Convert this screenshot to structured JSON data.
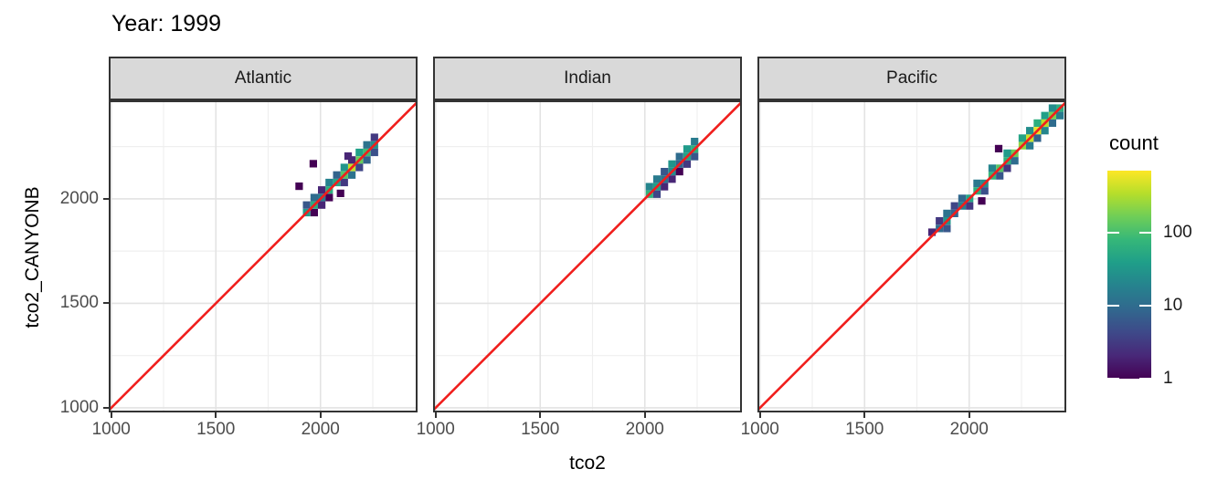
{
  "title": "Year: 1999",
  "axes": {
    "x_title": "tco2",
    "y_title": "tco2_CANYONB",
    "x_ticks": [
      1000,
      1500,
      2000
    ],
    "y_ticks": [
      1000,
      1500,
      2000
    ],
    "x_minor": [
      1250,
      1750,
      2250
    ],
    "y_minor": [
      1250,
      1750,
      2250
    ]
  },
  "legend": {
    "title": "count",
    "ticks": [
      1,
      10,
      100
    ],
    "scale": "log10",
    "max": 700
  },
  "colors": {
    "red_line": "#f01e1c",
    "strip_fill": "#d9d9d9",
    "border": "#333333",
    "grid_major": "#e3e3e3",
    "grid_minor": "#efefef",
    "axis_text": "#4d4d4d",
    "viridis": [
      "#440154",
      "#482878",
      "#3e4989",
      "#31688e",
      "#26828e",
      "#1f9e89",
      "#35b779",
      "#6ece58",
      "#b5de2b",
      "#fde725"
    ]
  },
  "chart_data": {
    "type": "heatmap",
    "geom": "bin2d",
    "title": "Year: 1999",
    "xlabel": "tco2",
    "ylabel": "tco2_CANYONB",
    "binwidth": 36,
    "x_domain": [
      988,
      2464
    ],
    "y_domain": [
      978,
      2471
    ],
    "legend_position": "right",
    "grid": true,
    "reference_line": {
      "type": "abline",
      "slope": 1,
      "intercept": 0
    },
    "facets": [
      {
        "label": "Atlantic",
        "bins": [
          [
            1934,
            1934,
            35
          ],
          [
            1970,
            1970,
            55
          ],
          [
            2006,
            2006,
            15
          ],
          [
            2042,
            2042,
            60
          ],
          [
            2078,
            2078,
            45
          ],
          [
            2114,
            2114,
            120
          ],
          [
            2150,
            2150,
            380
          ],
          [
            2186,
            2186,
            150
          ],
          [
            2222,
            2222,
            90
          ],
          [
            2258,
            2258,
            25
          ],
          [
            1934,
            1970,
            6
          ],
          [
            1970,
            2006,
            10
          ],
          [
            2006,
            1970,
            2
          ],
          [
            2042,
            2078,
            18
          ],
          [
            2078,
            2114,
            8
          ],
          [
            2114,
            2078,
            3
          ],
          [
            2114,
            2150,
            30
          ],
          [
            2150,
            2114,
            12
          ],
          [
            2186,
            2222,
            40
          ],
          [
            2222,
            2186,
            8
          ],
          [
            2186,
            2150,
            4
          ],
          [
            2222,
            2258,
            12
          ],
          [
            2258,
            2222,
            5
          ],
          [
            1970,
            1934,
            1
          ],
          [
            2006,
            2042,
            2
          ],
          [
            2042,
            2006,
            1
          ],
          [
            2150,
            2186,
            2
          ],
          [
            2258,
            2294,
            3
          ],
          [
            1898,
            2060,
            1
          ],
          [
            1966,
            2168,
            1
          ],
          [
            2096,
            2026,
            1
          ],
          [
            2132,
            2204,
            2
          ]
        ]
      },
      {
        "label": "Indian",
        "bins": [
          [
            2022,
            2022,
            70
          ],
          [
            2058,
            2058,
            40
          ],
          [
            2094,
            2094,
            12
          ],
          [
            2130,
            2130,
            25
          ],
          [
            2166,
            2166,
            8
          ],
          [
            2202,
            2202,
            45
          ],
          [
            2238,
            2238,
            60
          ],
          [
            2022,
            2058,
            20
          ],
          [
            2058,
            2094,
            15
          ],
          [
            2058,
            2022,
            4
          ],
          [
            2094,
            2130,
            6
          ],
          [
            2130,
            2166,
            30
          ],
          [
            2130,
            2094,
            2
          ],
          [
            2166,
            2202,
            10
          ],
          [
            2202,
            2238,
            35
          ],
          [
            2202,
            2166,
            3
          ],
          [
            2238,
            2274,
            15
          ],
          [
            2238,
            2202,
            6
          ],
          [
            2166,
            2130,
            1
          ],
          [
            2094,
            2058,
            2
          ]
        ]
      },
      {
        "label": "Pacific",
        "bins": [
          [
            1858,
            1858,
            10
          ],
          [
            1894,
            1894,
            30
          ],
          [
            1930,
            1930,
            8
          ],
          [
            1966,
            1966,
            18
          ],
          [
            2002,
            2002,
            45
          ],
          [
            2038,
            2038,
            60
          ],
          [
            2074,
            2074,
            25
          ],
          [
            2110,
            2110,
            80
          ],
          [
            2146,
            2146,
            120
          ],
          [
            2182,
            2182,
            70
          ],
          [
            2218,
            2218,
            160
          ],
          [
            2254,
            2254,
            230
          ],
          [
            2290,
            2290,
            420
          ],
          [
            2326,
            2326,
            560
          ],
          [
            2362,
            2362,
            350
          ],
          [
            2398,
            2398,
            180
          ],
          [
            2434,
            2434,
            60
          ],
          [
            1858,
            1894,
            3
          ],
          [
            1894,
            1858,
            6
          ],
          [
            1894,
            1930,
            12
          ],
          [
            1930,
            1966,
            4
          ],
          [
            1966,
            2002,
            9
          ],
          [
            2002,
            1966,
            3
          ],
          [
            2038,
            2074,
            14
          ],
          [
            2074,
            2038,
            5
          ],
          [
            2110,
            2146,
            20
          ],
          [
            2146,
            2110,
            6
          ],
          [
            2182,
            2218,
            35
          ],
          [
            2218,
            2182,
            10
          ],
          [
            2182,
            2146,
            3
          ],
          [
            2254,
            2290,
            45
          ],
          [
            2290,
            2254,
            15
          ],
          [
            2290,
            2326,
            25
          ],
          [
            2326,
            2362,
            60
          ],
          [
            2326,
            2290,
            8
          ],
          [
            2362,
            2326,
            20
          ],
          [
            2362,
            2398,
            40
          ],
          [
            2398,
            2434,
            25
          ],
          [
            2398,
            2362,
            10
          ],
          [
            2434,
            2398,
            15
          ],
          [
            2141,
            2240,
            1
          ],
          [
            2060,
            1990,
            1
          ],
          [
            1822,
            1840,
            2
          ]
        ]
      }
    ]
  }
}
